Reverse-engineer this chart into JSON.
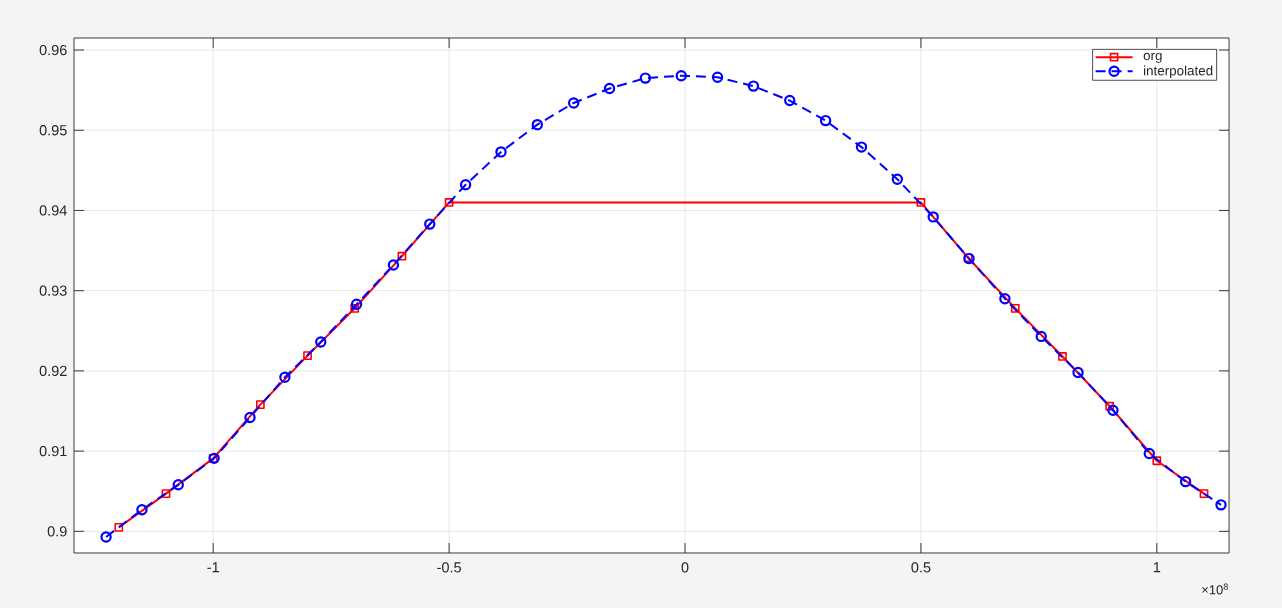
{
  "chart_data": {
    "type": "line",
    "series": [
      {
        "name": "org",
        "color": "#ff0000",
        "marker": "square",
        "line_style": "solid",
        "x": [
          -1.2,
          -1.1,
          -1.0,
          -0.9,
          -0.8,
          -0.7,
          -0.6,
          -0.5,
          0.5,
          0.6,
          0.7,
          0.8,
          0.9,
          1.0,
          1.1
        ],
        "values": [
          0.9005,
          0.9047,
          0.9091,
          0.9158,
          0.9219,
          0.9278,
          0.9343,
          0.941,
          0.941,
          0.9341,
          0.9278,
          0.9218,
          0.9156,
          0.9088,
          0.9047
        ]
      },
      {
        "name": "interpolated",
        "color": "#0000ff",
        "marker": "circle",
        "line_style": "dashed",
        "x": [
          -1.227,
          -1.151,
          -1.074,
          -0.998,
          -0.922,
          -0.848,
          -0.772,
          -0.696,
          -0.618,
          -0.541,
          -0.465,
          -0.39,
          -0.313,
          -0.236,
          -0.16,
          -0.084,
          -0.008,
          0.069,
          0.145,
          0.222,
          0.298,
          0.374,
          0.45,
          0.526,
          0.602,
          0.678,
          0.755,
          0.833,
          0.907,
          0.984,
          1.061,
          1.136
        ],
        "values": [
          0.8993,
          0.9027,
          0.9058,
          0.9091,
          0.9142,
          0.9192,
          0.9236,
          0.9283,
          0.9332,
          0.9383,
          0.9432,
          0.9473,
          0.9507,
          0.9534,
          0.9552,
          0.9565,
          0.9568,
          0.9566,
          0.9555,
          0.9537,
          0.9512,
          0.9479,
          0.9439,
          0.9392,
          0.934,
          0.929,
          0.9243,
          0.9198,
          0.9151,
          0.9097,
          0.9062,
          0.9033
        ]
      }
    ],
    "xlim": [
      -1.295,
      1.153
    ],
    "ylim": [
      0.8973,
      0.9615
    ],
    "xticks": [
      -1,
      -0.5,
      0,
      0.5,
      1
    ],
    "yticks": [
      0.9,
      0.91,
      0.92,
      0.93,
      0.94,
      0.95,
      0.96
    ],
    "grid": true,
    "legend": "top right",
    "annotations": [
      "×10$^{8}$"
    ]
  }
}
